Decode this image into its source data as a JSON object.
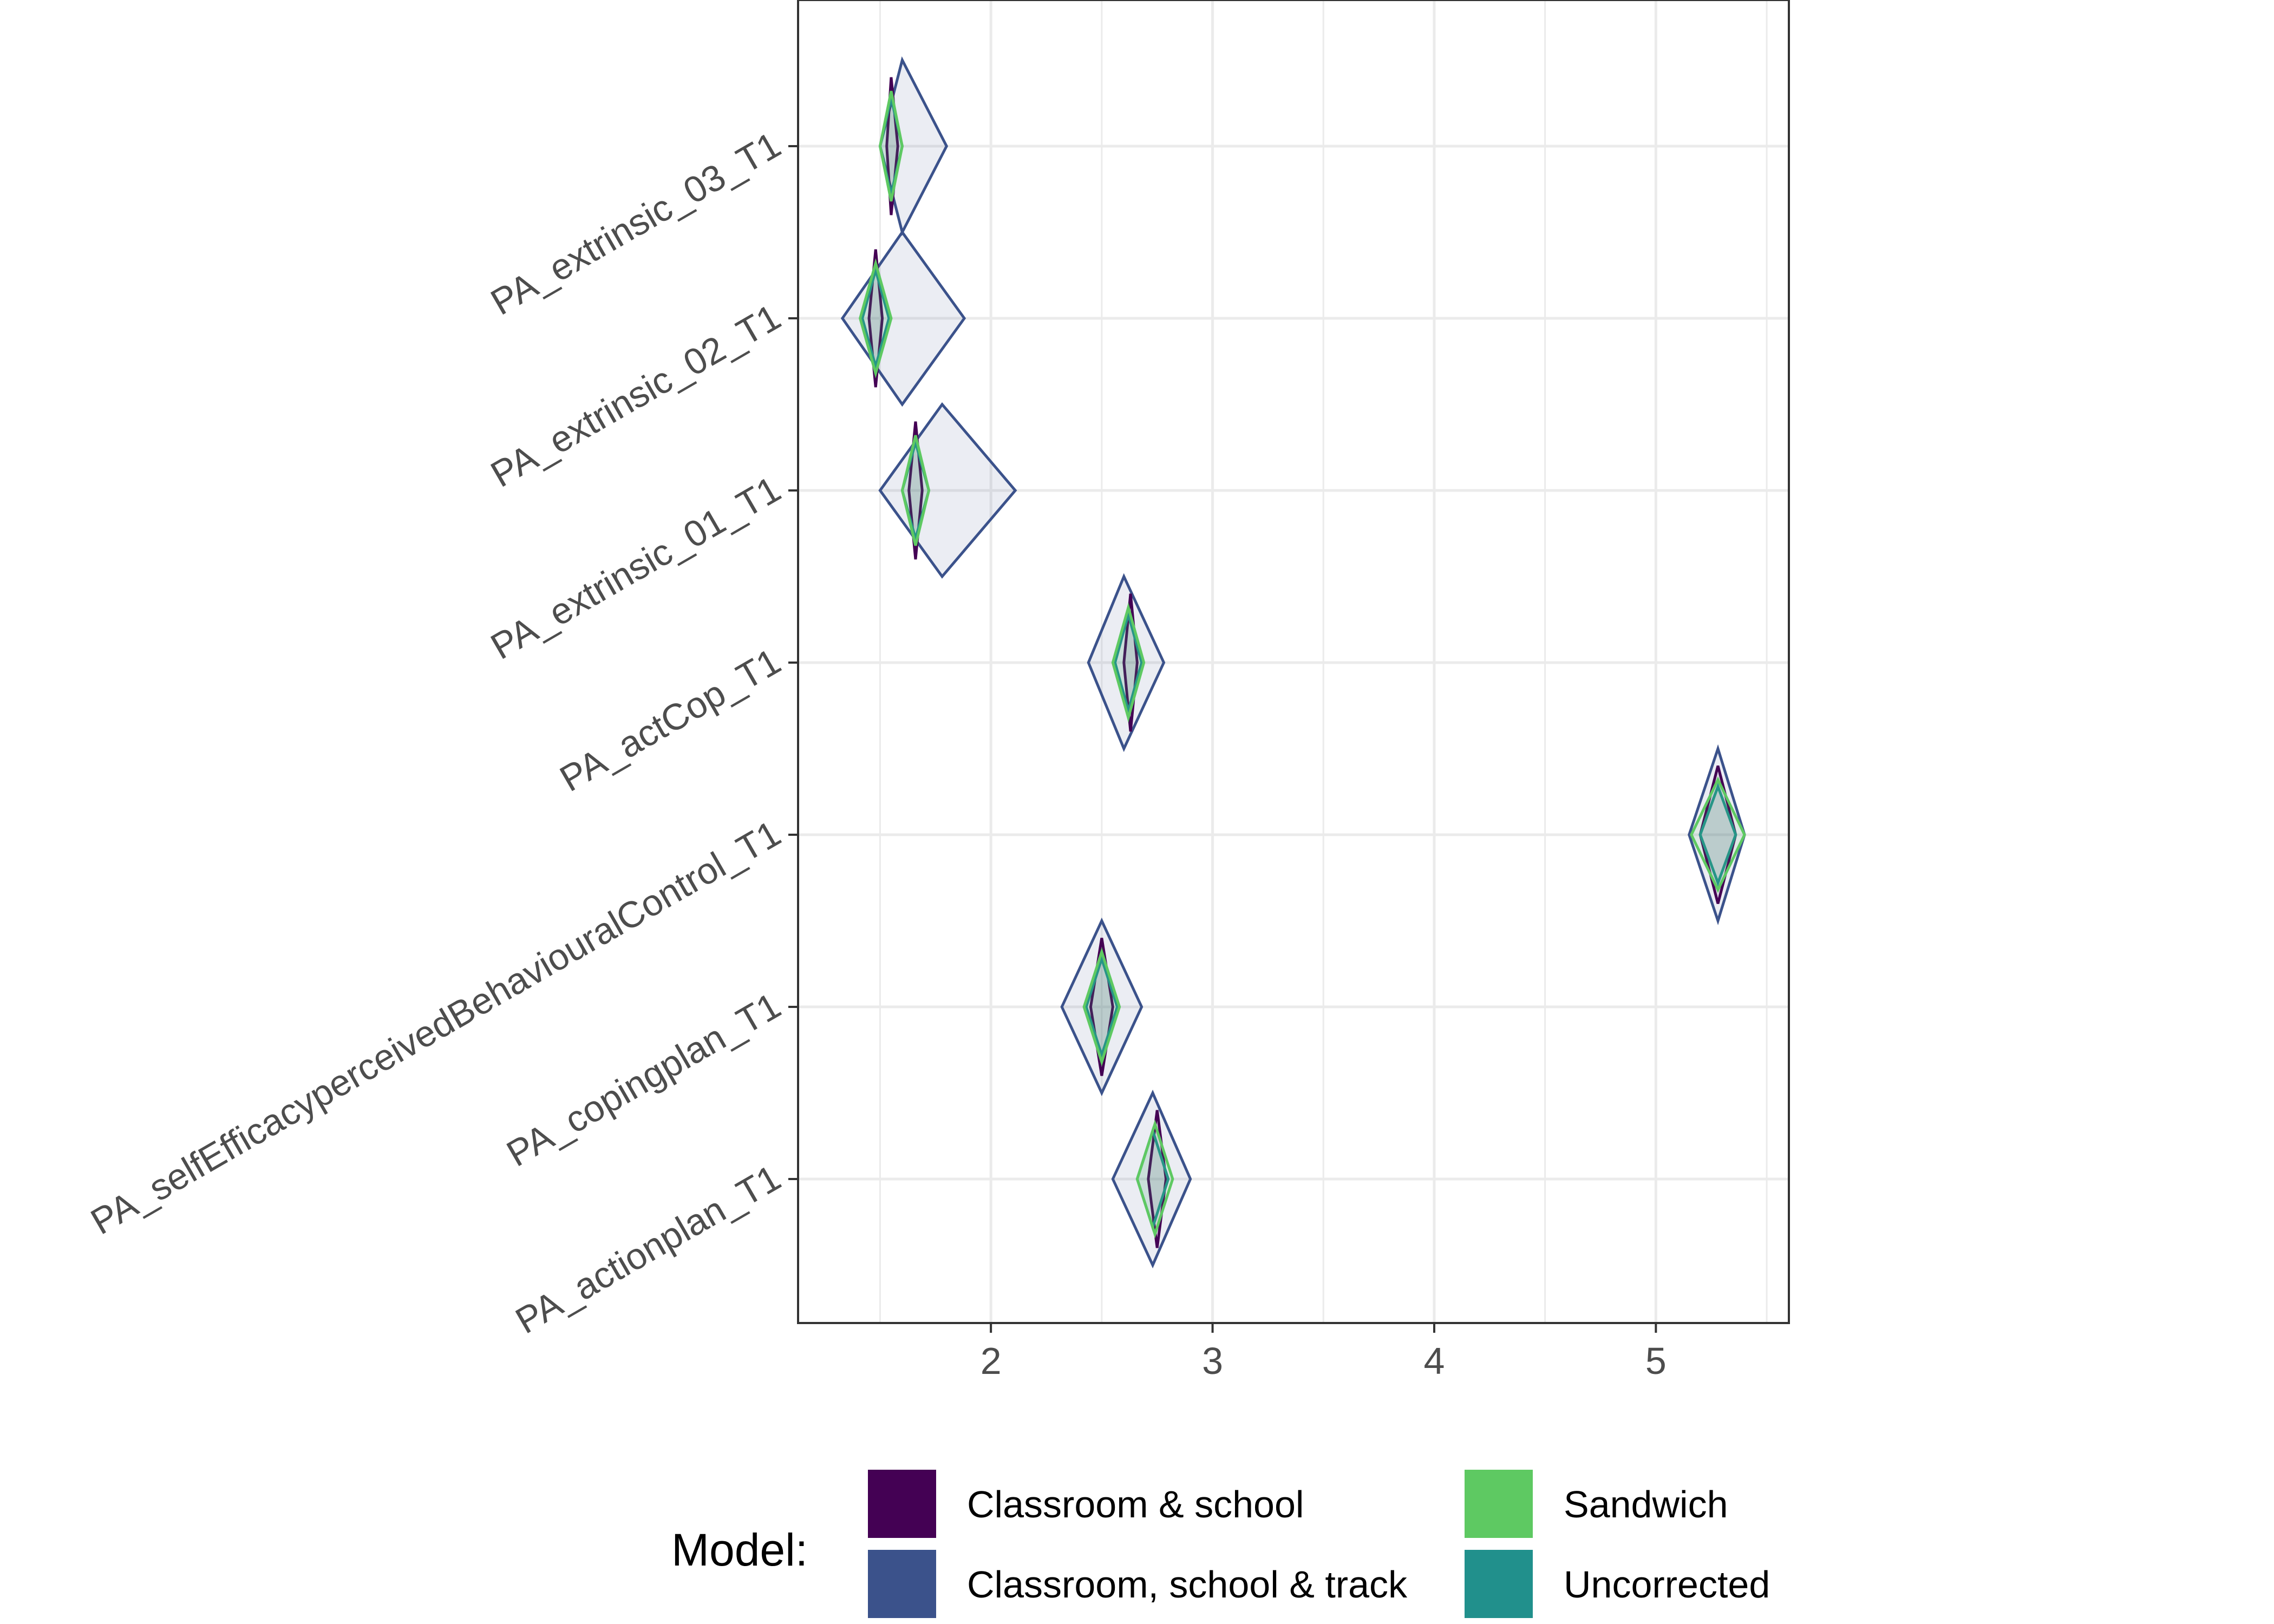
{
  "chart_data": {
    "type": "diamond-interval",
    "title": "",
    "xlabel": "",
    "ylabel": "",
    "xlim": [
      1.13,
      5.6
    ],
    "x_ticks": [
      2,
      3,
      4,
      5
    ],
    "x_tick_labels": [
      "2",
      "3",
      "4",
      "5"
    ],
    "grid": true,
    "legend_position": "bottom",
    "legend_title": "Model:",
    "categories": [
      "PA_extrinsic_03_T1",
      "PA_extrinsic_02_T1",
      "PA_extrinsic_01_T1",
      "PA_actCop_T1",
      "PA_selfEfficacyperceivedBehaviouralControl_T1",
      "PA_copingplan_T1",
      "PA_actionplan_T1"
    ],
    "series": [
      {
        "name": "Classroom, school & track",
        "color": "#3b528b",
        "fill": "#3b528b",
        "values": [
          {
            "low": 1.5,
            "center": 1.6,
            "high": 1.8,
            "halfheight": 0.5
          },
          {
            "low": 1.33,
            "center": 1.6,
            "high": 1.88,
            "halfheight": 0.5
          },
          {
            "low": 1.5,
            "center": 1.78,
            "high": 2.11,
            "halfheight": 0.5
          },
          {
            "low": 2.44,
            "center": 2.6,
            "high": 2.78,
            "halfheight": 0.5
          },
          {
            "low": 5.15,
            "center": 5.28,
            "high": 5.4,
            "halfheight": 0.5
          },
          {
            "low": 2.32,
            "center": 2.5,
            "high": 2.68,
            "halfheight": 0.5
          },
          {
            "low": 2.55,
            "center": 2.73,
            "high": 2.9,
            "halfheight": 0.5
          }
        ]
      },
      {
        "name": "Classroom & school",
        "color": "#440154",
        "fill": "#440154",
        "values": [
          {
            "low": 1.53,
            "center": 1.55,
            "high": 1.58,
            "halfheight": 0.4
          },
          {
            "low": 1.45,
            "center": 1.48,
            "high": 1.51,
            "halfheight": 0.4
          },
          {
            "low": 1.63,
            "center": 1.66,
            "high": 1.69,
            "halfheight": 0.4
          },
          {
            "low": 2.6,
            "center": 2.63,
            "high": 2.66,
            "halfheight": 0.4
          },
          {
            "low": 5.2,
            "center": 5.28,
            "high": 5.36,
            "halfheight": 0.4
          },
          {
            "low": 2.45,
            "center": 2.5,
            "high": 2.55,
            "halfheight": 0.4
          },
          {
            "low": 2.71,
            "center": 2.75,
            "high": 2.79,
            "halfheight": 0.4
          }
        ]
      },
      {
        "name": "Uncorrected",
        "color": "#21908c",
        "fill": "#21908c",
        "values": [
          {
            "low": 1.5,
            "center": 1.55,
            "high": 1.6,
            "halfheight": 0.28
          },
          {
            "low": 1.42,
            "center": 1.48,
            "high": 1.54,
            "halfheight": 0.28
          },
          {
            "low": 1.6,
            "center": 1.66,
            "high": 1.72,
            "halfheight": 0.28
          },
          {
            "low": 2.56,
            "center": 2.62,
            "high": 2.68,
            "halfheight": 0.28
          },
          {
            "low": 5.2,
            "center": 5.28,
            "high": 5.36,
            "halfheight": 0.28
          },
          {
            "low": 2.43,
            "center": 2.5,
            "high": 2.57,
            "halfheight": 0.28
          },
          {
            "low": 2.66,
            "center": 2.73,
            "high": 2.8,
            "halfheight": 0.28
          }
        ]
      },
      {
        "name": "Sandwich",
        "color": "#5ec962",
        "fill": "#5ec962",
        "values": [
          {
            "low": 1.5,
            "center": 1.55,
            "high": 1.6,
            "halfheight": 0.32
          },
          {
            "low": 1.41,
            "center": 1.48,
            "high": 1.55,
            "halfheight": 0.32
          },
          {
            "low": 1.6,
            "center": 1.66,
            "high": 1.72,
            "halfheight": 0.32
          },
          {
            "low": 2.55,
            "center": 2.62,
            "high": 2.69,
            "halfheight": 0.32
          },
          {
            "low": 5.16,
            "center": 5.28,
            "high": 5.4,
            "halfheight": 0.32
          },
          {
            "low": 2.42,
            "center": 2.5,
            "high": 2.58,
            "halfheight": 0.32
          },
          {
            "low": 2.66,
            "center": 2.74,
            "high": 2.82,
            "halfheight": 0.32
          }
        ]
      }
    ],
    "legend_items": [
      {
        "name": "Classroom & school",
        "color": "#440154"
      },
      {
        "name": "Classroom, school & track",
        "color": "#3b528b"
      },
      {
        "name": "Sandwich",
        "color": "#5ec962"
      },
      {
        "name": "Uncorrected",
        "color": "#21908c"
      }
    ]
  }
}
